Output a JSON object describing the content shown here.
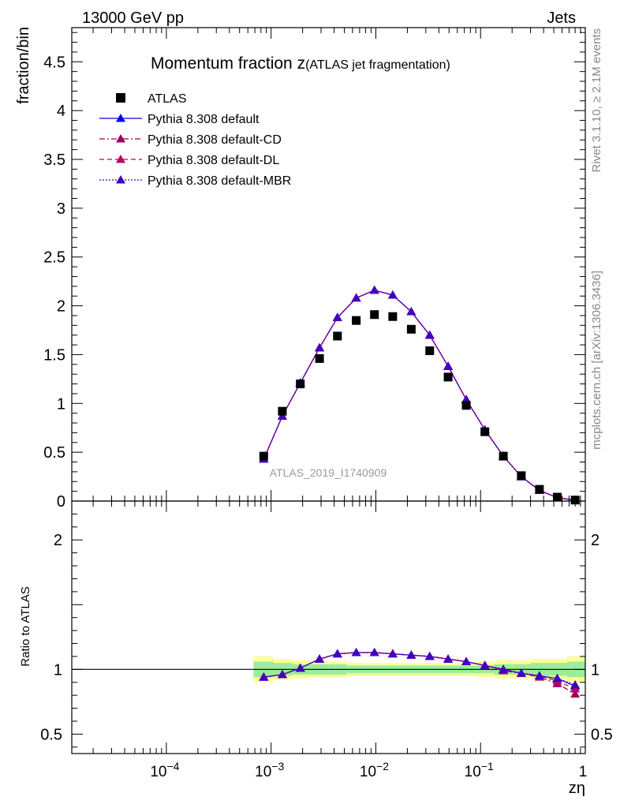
{
  "header": {
    "left": "13000 GeV pp",
    "right": "Jets"
  },
  "side_text": {
    "rivet": "Rivet 3.1.10, ≥ 2.1M events",
    "mcplots": "mcplots.cern.ch [arXiv:1306.3436]"
  },
  "chart_data": {
    "type": "line",
    "title_main": "Momentum fraction z",
    "title_sub": "(ATLAS jet fragmentation)",
    "watermark": "ATLAS_2019_I1740909",
    "xlabel": "zη",
    "x_scale": "log",
    "xlim": [
      1.25e-05,
      1
    ],
    "x_ticks": [
      {
        "value": 0.0001,
        "base": "10",
        "exp": "−4"
      },
      {
        "value": 0.001,
        "base": "10",
        "exp": "−3"
      },
      {
        "value": 0.01,
        "base": "10",
        "exp": "−2"
      },
      {
        "value": 0.1,
        "base": "10",
        "exp": "−1"
      },
      {
        "value": 1,
        "base": "1",
        "exp": ""
      }
    ],
    "upper": {
      "ylabel": "fraction/bin",
      "ylim": [
        0,
        4.85
      ],
      "y_ticks": [
        {
          "value": 0,
          "label": "0"
        },
        {
          "value": 0.5,
          "label": "0.5"
        },
        {
          "value": 1,
          "label": "1"
        },
        {
          "value": 1.5,
          "label": "1.5"
        },
        {
          "value": 2,
          "label": "2"
        },
        {
          "value": 2.5,
          "label": "2.5"
        },
        {
          "value": 3,
          "label": "3"
        },
        {
          "value": 3.5,
          "label": "3.5"
        },
        {
          "value": 4,
          "label": "4"
        },
        {
          "value": 4.5,
          "label": "4.5"
        }
      ]
    },
    "lower": {
      "ylabel": "Ratio to ATLAS",
      "ylim": [
        0.35,
        2.3
      ],
      "y_ticks": [
        {
          "value": 0.5,
          "label": "0.5"
        },
        {
          "value": 1,
          "label": "1"
        },
        {
          "value": 2,
          "label": "2"
        }
      ]
    },
    "x": [
      0.00085,
      0.00128,
      0.0019,
      0.0029,
      0.0043,
      0.0065,
      0.0097,
      0.0145,
      0.0218,
      0.0327,
      0.049,
      0.073,
      0.11,
      0.165,
      0.245,
      0.365,
      0.54,
      0.8
    ],
    "band_edges": [
      0.00068,
      0.00105,
      0.00158,
      0.00237,
      0.00355,
      0.0053,
      0.008,
      0.012,
      0.018,
      0.027,
      0.04,
      0.06,
      0.09,
      0.135,
      0.2,
      0.3,
      0.45,
      0.67,
      1.0
    ],
    "data": {
      "name": "ATLAS",
      "values": [
        0.46,
        0.92,
        1.2,
        1.46,
        1.69,
        1.85,
        1.91,
        1.89,
        1.76,
        1.54,
        1.27,
        0.98,
        0.71,
        0.46,
        0.26,
        0.12,
        0.04,
        0.01
      ],
      "ratio_band_inner": [
        0.06,
        0.05,
        0.04,
        0.04,
        0.04,
        0.03,
        0.03,
        0.03,
        0.03,
        0.03,
        0.03,
        0.03,
        0.03,
        0.04,
        0.04,
        0.05,
        0.05,
        0.06
      ],
      "ratio_band_outer": [
        0.1,
        0.08,
        0.07,
        0.06,
        0.06,
        0.05,
        0.05,
        0.05,
        0.05,
        0.05,
        0.05,
        0.05,
        0.06,
        0.07,
        0.07,
        0.08,
        0.08,
        0.1
      ]
    },
    "series": [
      {
        "name": "Pythia 8.308 default",
        "color": "#0000ff",
        "dash": "",
        "values": [
          0.43,
          0.87,
          1.21,
          1.57,
          1.88,
          2.08,
          2.16,
          2.11,
          1.94,
          1.7,
          1.38,
          1.04,
          0.73,
          0.46,
          0.25,
          0.11,
          0.035,
          0.0087
        ],
        "ratio": [
          0.94,
          0.96,
          1.01,
          1.08,
          1.12,
          1.13,
          1.13,
          1.12,
          1.11,
          1.1,
          1.08,
          1.06,
          1.03,
          1.0,
          0.97,
          0.95,
          0.93,
          0.87
        ]
      },
      {
        "name": "Pythia 8.308 default-CD",
        "color": "#a0005a",
        "dash": "7,3,2,3",
        "values": [
          0.43,
          0.87,
          1.21,
          1.57,
          1.88,
          2.08,
          2.16,
          2.11,
          1.94,
          1.7,
          1.38,
          1.04,
          0.73,
          0.46,
          0.25,
          0.11,
          0.034,
          0.008
        ],
        "ratio": [
          0.94,
          0.96,
          1.01,
          1.08,
          1.12,
          1.13,
          1.13,
          1.12,
          1.11,
          1.1,
          1.08,
          1.06,
          1.03,
          0.99,
          0.97,
          0.94,
          0.89,
          0.81
        ]
      },
      {
        "name": "Pythia 8.308 default-DL",
        "color": "#c0005a",
        "dash": "6,4",
        "values": [
          0.43,
          0.87,
          1.21,
          1.57,
          1.88,
          2.08,
          2.16,
          2.11,
          1.94,
          1.7,
          1.38,
          1.04,
          0.73,
          0.46,
          0.25,
          0.11,
          0.035,
          0.0085
        ],
        "ratio": [
          0.94,
          0.96,
          1.01,
          1.08,
          1.12,
          1.13,
          1.13,
          1.12,
          1.11,
          1.1,
          1.08,
          1.06,
          1.03,
          1.0,
          0.97,
          0.95,
          0.91,
          0.85
        ]
      },
      {
        "name": "Pythia 8.308 default-MBR",
        "color": "#4000c0",
        "dash": "2,2",
        "values": [
          0.43,
          0.87,
          1.21,
          1.57,
          1.88,
          2.08,
          2.16,
          2.11,
          1.94,
          1.7,
          1.38,
          1.04,
          0.73,
          0.46,
          0.25,
          0.11,
          0.035,
          0.0088
        ],
        "ratio": [
          0.94,
          0.96,
          1.01,
          1.08,
          1.12,
          1.13,
          1.13,
          1.12,
          1.11,
          1.1,
          1.08,
          1.06,
          1.03,
          1.0,
          0.97,
          0.95,
          0.93,
          0.88
        ]
      }
    ],
    "legend": "top-left"
  }
}
